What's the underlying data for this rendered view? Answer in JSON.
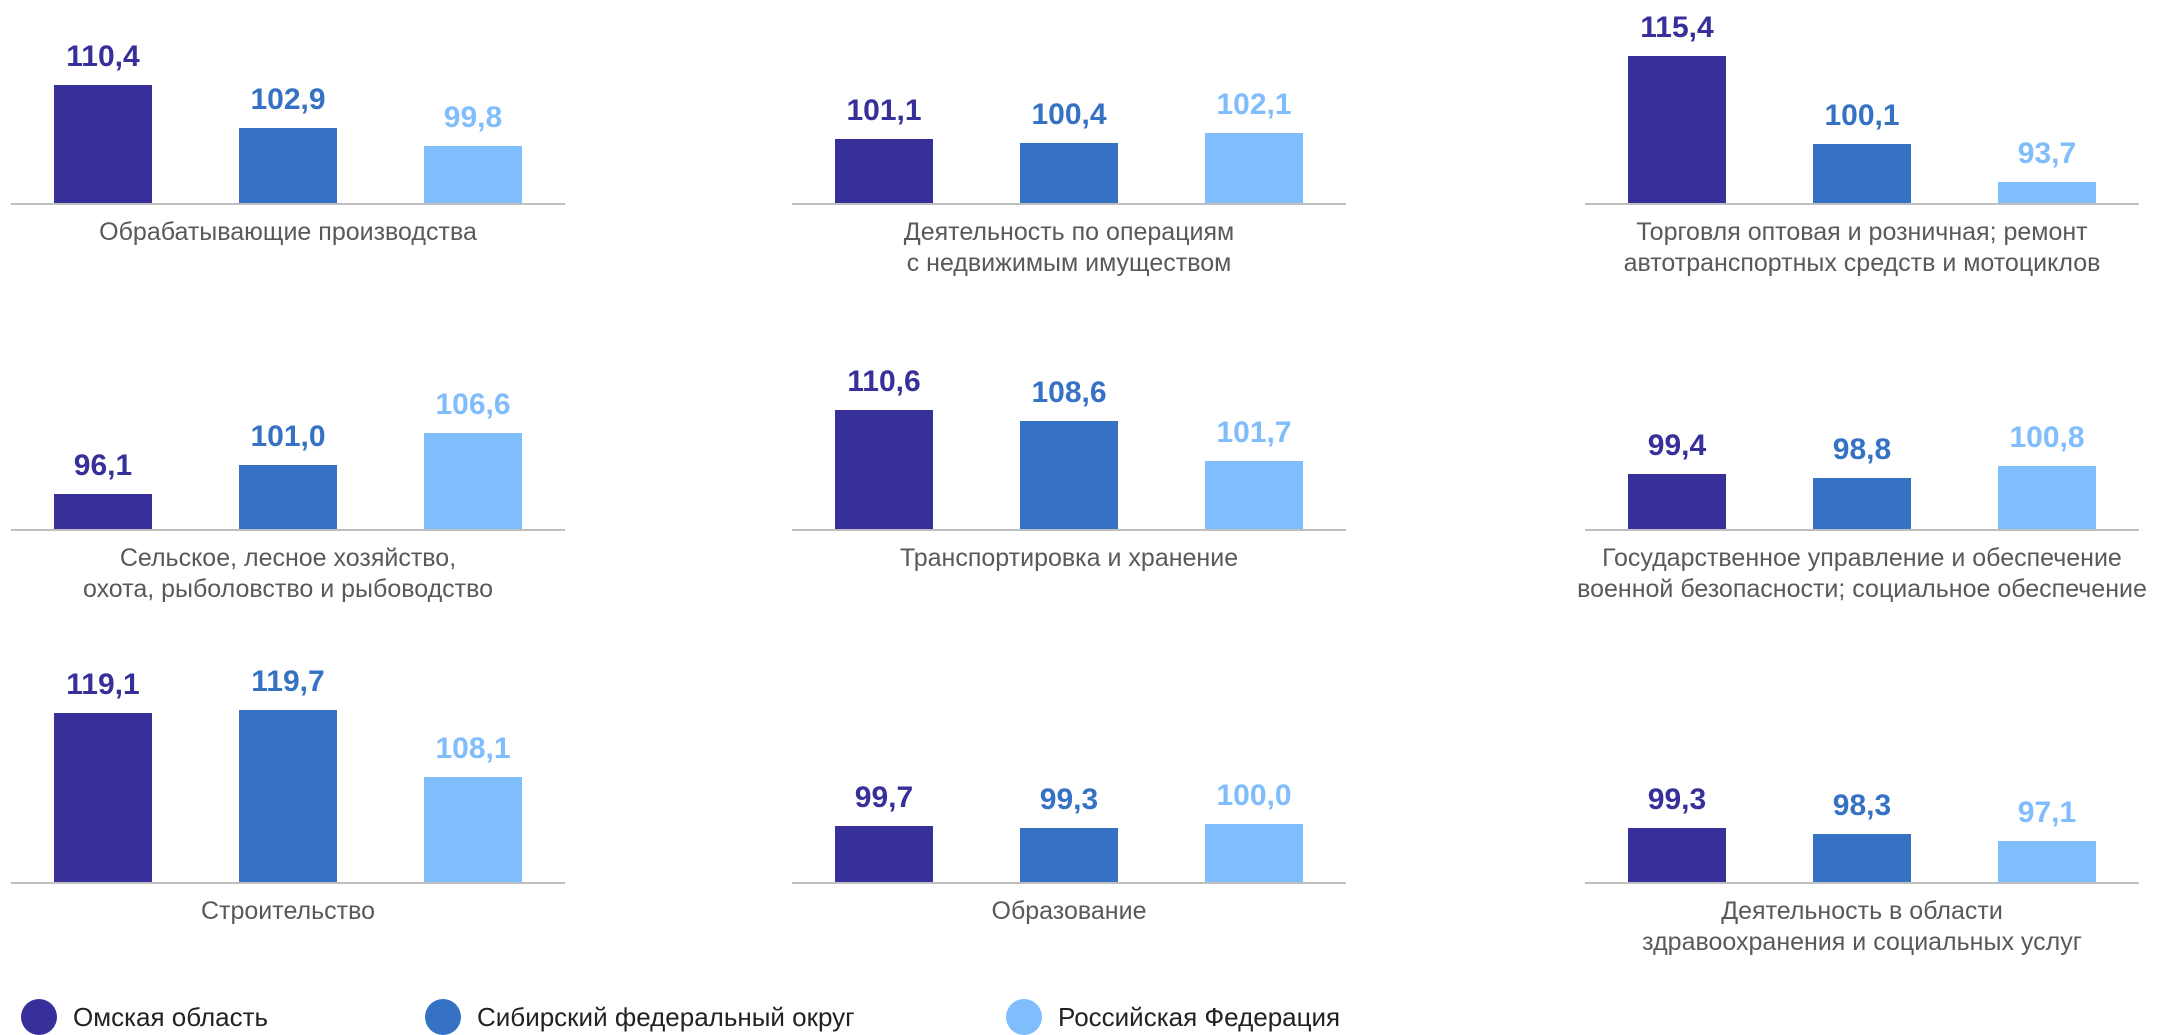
{
  "chart_data": {
    "type": "bar",
    "categories": [
      "Обрабатывающие производства",
      "Деятельность по операциям\nс недвижимым имуществом",
      "Торговля оптовая и розничная; ремонт\nавтотранспортных средств и мотоциклов",
      "Сельское, лесное хозяйство,\nохота, рыболовство и рыбоводство",
      "Транспортировка и хранение",
      "Государственное управление и обеспечение\nвоенной безопасности; социальное обеспечение",
      "Строительство",
      "Образование",
      "Деятельность в области\nздравоохранения и социальных услуг"
    ],
    "series": [
      {
        "name": "Омская область",
        "color": "#37309a",
        "values": [
          110.4,
          101.1,
          115.4,
          96.1,
          110.6,
          99.4,
          119.1,
          99.7,
          99.3
        ],
        "value_labels": [
          "110,4",
          "101,1",
          "115,4",
          "96,1",
          "110,6",
          "99,4",
          "119,1",
          "99,7",
          "99,3"
        ]
      },
      {
        "name": "Сибирский федеральный округ",
        "color": "#3572c4",
        "values": [
          102.9,
          100.4,
          100.1,
          101.0,
          108.6,
          98.8,
          119.7,
          99.3,
          98.3
        ],
        "value_labels": [
          "102,9",
          "100,4",
          "100,1",
          "101,0",
          "108,6",
          "98,8",
          "119,7",
          "99,3",
          "98,3"
        ]
      },
      {
        "name": "Российская Федерация",
        "color": "#80bdfc",
        "values": [
          99.8,
          102.1,
          93.7,
          106.6,
          101.7,
          100.8,
          108.1,
          100.0,
          97.1
        ],
        "value_labels": [
          "99,8",
          "102,1",
          "93,7",
          "106,6",
          "101,7",
          "100,8",
          "108,1",
          "100,0",
          "97,1"
        ]
      }
    ],
    "ylim": [
      90,
      120
    ],
    "legend": "bottom"
  }
}
